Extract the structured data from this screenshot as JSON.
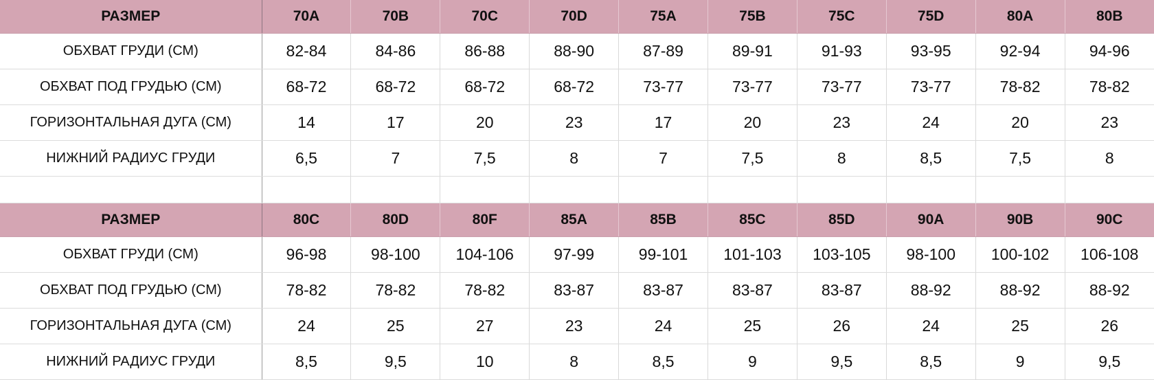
{
  "tables": [
    {
      "header": [
        "РАЗМЕР",
        "70A",
        "70B",
        "70C",
        "70D",
        "75A",
        "75B",
        "75C",
        "75D",
        "80A",
        "80B"
      ],
      "rows": [
        [
          "ОБХВАТ ГРУДИ (СМ)",
          "82-84",
          "84-86",
          "86-88",
          "88-90",
          "87-89",
          "89-91",
          "91-93",
          "93-95",
          "92-94",
          "94-96"
        ],
        [
          "ОБХВАТ ПОД ГРУДЬЮ (СМ)",
          "68-72",
          "68-72",
          "68-72",
          "68-72",
          "73-77",
          "73-77",
          "73-77",
          "73-77",
          "78-82",
          "78-82"
        ],
        [
          "ГОРИЗОНТАЛЬНАЯ ДУГА (СМ)",
          "14",
          "17",
          "20",
          "23",
          "17",
          "20",
          "23",
          "24",
          "20",
          "23"
        ],
        [
          "НИЖНИЙ РАДИУС ГРУДИ",
          "6,5",
          "7",
          "7,5",
          "8",
          "7",
          "7,5",
          "8",
          "8,5",
          "7,5",
          "8"
        ]
      ]
    },
    {
      "header": [
        "РАЗМЕР",
        "80C",
        "80D",
        "80F",
        "85A",
        "85B",
        "85C",
        "85D",
        "90A",
        "90B",
        "90C"
      ],
      "rows": [
        [
          "ОБХВАТ ГРУДИ (СМ)",
          "96-98",
          "98-100",
          "104-106",
          "97-99",
          "99-101",
          "101-103",
          "103-105",
          "98-100",
          "100-102",
          "106-108"
        ],
        [
          "ОБХВАТ ПОД ГРУДЬЮ (СМ)",
          "78-82",
          "78-82",
          "78-82",
          "83-87",
          "83-87",
          "83-87",
          "83-87",
          "88-92",
          "88-92",
          "88-92"
        ],
        [
          "ГОРИЗОНТАЛЬНАЯ ДУГА (СМ)",
          "24",
          "25",
          "27",
          "23",
          "24",
          "25",
          "26",
          "24",
          "25",
          "26"
        ],
        [
          "НИЖНИЙ РАДИУС ГРУДИ",
          "8,5",
          "9,5",
          "10",
          "8",
          "8,5",
          "9",
          "9,5",
          "8,5",
          "9",
          "9,5"
        ]
      ]
    }
  ],
  "colors": {
    "header_bg": "#d4a5b3",
    "text": "#111111",
    "grid": "#d9d9d9"
  }
}
